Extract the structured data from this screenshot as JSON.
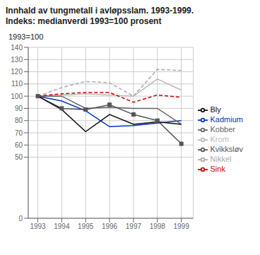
{
  "chart_data": {
    "type": "line",
    "title": "Innhald av tungmetall i avløpsslam. 1993-1999.",
    "subtitle": "Indeks: medianverdi 1993=100 prosent",
    "y_label": "1993=100",
    "x": [
      1993,
      1994,
      1995,
      1996,
      1997,
      1998,
      1999
    ],
    "xlim": [
      1992.6,
      1999.5
    ],
    "xticks": [
      1993,
      1994,
      1995,
      1996,
      1997,
      1998,
      1999
    ],
    "ylim": [
      0,
      140
    ],
    "yticks": [
      0,
      50,
      60,
      70,
      80,
      90,
      100,
      110,
      120,
      130,
      140
    ],
    "grid": true,
    "legend": "right",
    "series": [
      {
        "name": "Kadmium",
        "color": "#0033CC",
        "line_style": "solid",
        "values": [
          100,
          96,
          88,
          75,
          76,
          78,
          80
        ]
      },
      {
        "name": "Krom",
        "color": "#BBBBBB",
        "line_style": "solid",
        "values": [
          100,
          101,
          102,
          101,
          100,
          114,
          105
        ]
      },
      {
        "name": "Kobber",
        "color": "#666666",
        "line_style": "solid",
        "values": [
          100,
          100,
          90,
          91,
          90,
          90,
          77
        ]
      },
      {
        "name": "Kvikksløv",
        "color": "#555555",
        "line_style": "solid",
        "marker": "square",
        "values": [
          100,
          90,
          89,
          93,
          85,
          80,
          61
        ]
      },
      {
        "name": "Nikkel",
        "color": "#AAAAAA",
        "line_style": "dashed",
        "values": [
          100,
          107,
          112,
          111,
          100,
          122,
          121
        ]
      },
      {
        "name": "Bly",
        "color": "#111111",
        "line_style": "solid",
        "values": [
          100,
          89,
          71,
          85,
          77,
          79,
          77
        ]
      },
      {
        "name": "Sink",
        "color": "#CC0000",
        "line_style": "dashed",
        "values": [
          100,
          102,
          103,
          103,
          95,
          101,
          99
        ]
      }
    ]
  }
}
